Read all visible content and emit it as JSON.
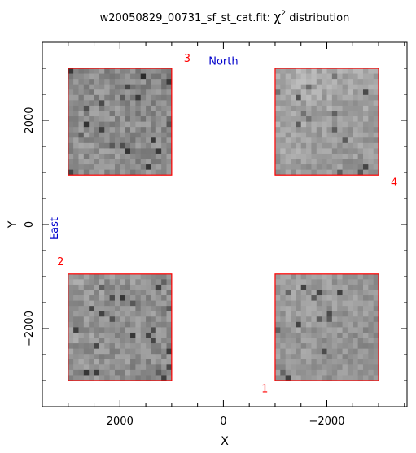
{
  "chart_data": {
    "type": "heatmap",
    "title": {
      "prefix": "w20050829_00731_sf_st_cat.fit:  ",
      "chi": "χ",
      "sup": "2",
      "suffix": " distribution"
    },
    "xlabel": "X",
    "ylabel": "Y",
    "xlim": [
      3500,
      -3550
    ],
    "ylim": [
      -3500,
      3500
    ],
    "xticks": [
      2000,
      0,
      -2000
    ],
    "yticks": [
      2000,
      0,
      -2000
    ],
    "xtick_labels": [
      "2000",
      "0",
      "−2000"
    ],
    "ytick_labels": [
      "2000",
      "0",
      "−2000"
    ],
    "grid": false,
    "colors": {
      "chip_outline": "#ff0000",
      "chip_label": "#ff0000",
      "orientation": "#0000cc",
      "axis": "#000000"
    },
    "orientation": [
      {
        "text": "North",
        "x": 0,
        "y": 3150,
        "rotate": false
      },
      {
        "text": "East",
        "x": 3200,
        "y": 0,
        "rotate": true
      }
    ],
    "chips": [
      {
        "id": "1",
        "x0": -1000,
        "x1": -3000,
        "y0": -3000,
        "y1": -950,
        "label_x": -800,
        "label_y": -3150,
        "seed": 11,
        "base": 150,
        "spread": 40
      },
      {
        "id": "2",
        "x0": 3000,
        "x1": 1000,
        "y0": -3000,
        "y1": -950,
        "label_x": 3150,
        "label_y": -700,
        "seed": 23,
        "base": 145,
        "spread": 48
      },
      {
        "id": "3",
        "x0": 3000,
        "x1": 1000,
        "y0": 950,
        "y1": 3000,
        "label_x": 700,
        "label_y": 3200,
        "seed": 37,
        "base": 140,
        "spread": 50
      },
      {
        "id": "4",
        "x0": -1000,
        "x1": -3000,
        "y0": 950,
        "y1": 3000,
        "label_x": -3300,
        "label_y": 820,
        "seed": 53,
        "base": 160,
        "spread": 42
      }
    ],
    "grid_cells": 20
  }
}
